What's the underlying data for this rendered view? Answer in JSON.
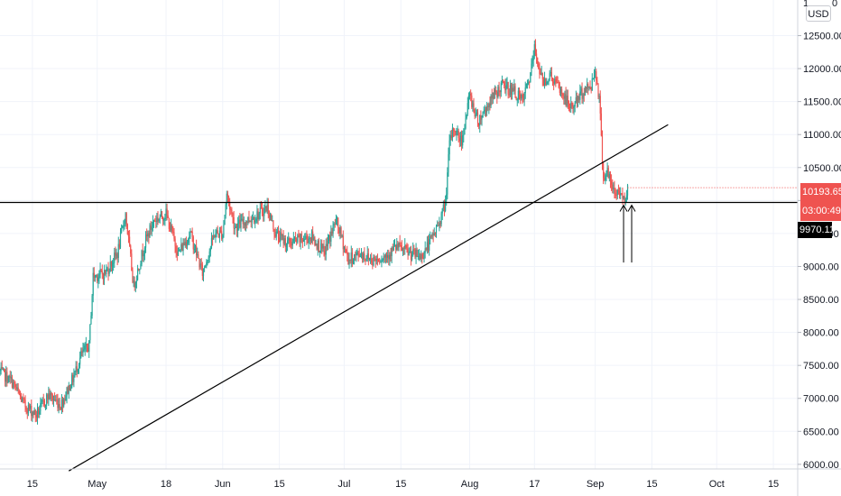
{
  "price_axis": {
    "currency_button": "USD",
    "partial_top_label": "1",
    "partial_top_suffix": "0"
  },
  "price_tags": {
    "last_price": "10193.65",
    "countdown": "03:00:49",
    "level": "9970.11"
  },
  "colors": {
    "up": "#26a69a",
    "down": "#ef5350",
    "line": "#000000",
    "grid": "#f0f3fa"
  },
  "chart_data": {
    "type": "candlestick",
    "title": "",
    "xlabel": "",
    "ylabel": "",
    "y_ticks": [
      6000,
      6500,
      7000,
      7500,
      8000,
      8500,
      9000,
      9500,
      10000,
      10500,
      11000,
      11500,
      12000,
      12500
    ],
    "y_tick_labels": [
      "6000.00",
      "6500.00",
      "7000.00",
      "7500.00",
      "8000.00",
      "8500.00",
      "9000.00",
      "9500.00",
      "10000.00",
      "10500.00",
      "11000.00",
      "11500.00",
      "12000.00",
      "12500.00"
    ],
    "ylim": [
      5930,
      13040
    ],
    "x_tick_labels": [
      "15",
      "May",
      "18",
      "Jun",
      "15",
      "Jul",
      "15",
      "Aug",
      "17",
      "Sep",
      "15",
      "Oct",
      "15"
    ],
    "x_tick_dates": [
      "2020-04-15",
      "2020-05-01",
      "2020-05-18",
      "2020-06-01",
      "2020-06-15",
      "2020-07-01",
      "2020-07-15",
      "2020-08-01",
      "2020-08-17",
      "2020-09-01",
      "2020-09-15",
      "2020-10-01",
      "2020-10-15"
    ],
    "xlim": [
      "2020-04-07",
      "2020-10-21"
    ],
    "price_path": [
      [
        "2020-04-07",
        7400
      ],
      [
        "2020-04-10",
        7250
      ],
      [
        "2020-04-13",
        6900
      ],
      [
        "2020-04-16",
        6750
      ],
      [
        "2020-04-19",
        7050
      ],
      [
        "2020-04-22",
        6900
      ],
      [
        "2020-04-25",
        7300
      ],
      [
        "2020-04-27",
        7650
      ],
      [
        "2020-04-29",
        7800
      ],
      [
        "2020-04-30",
        8850
      ],
      [
        "2020-05-03",
        8900
      ],
      [
        "2020-05-06",
        9200
      ],
      [
        "2020-05-08",
        9800
      ],
      [
        "2020-05-10",
        8700
      ],
      [
        "2020-05-13",
        9400
      ],
      [
        "2020-05-15",
        9700
      ],
      [
        "2020-05-18",
        9800
      ],
      [
        "2020-05-21",
        9200
      ],
      [
        "2020-05-24",
        9500
      ],
      [
        "2020-05-27",
        8900
      ],
      [
        "2020-05-30",
        9500
      ],
      [
        "2020-06-01",
        9500
      ],
      [
        "2020-06-02",
        10100
      ],
      [
        "2020-06-04",
        9600
      ],
      [
        "2020-06-07",
        9700
      ],
      [
        "2020-06-10",
        9800
      ],
      [
        "2020-06-12",
        9900
      ],
      [
        "2020-06-14",
        9500
      ],
      [
        "2020-06-17",
        9350
      ],
      [
        "2020-06-20",
        9400
      ],
      [
        "2020-06-23",
        9450
      ],
      [
        "2020-06-26",
        9200
      ],
      [
        "2020-06-29",
        9700
      ],
      [
        "2020-07-02",
        9100
      ],
      [
        "2020-07-05",
        9200
      ],
      [
        "2020-07-08",
        9100
      ],
      [
        "2020-07-11",
        9150
      ],
      [
        "2020-07-14",
        9300
      ],
      [
        "2020-07-17",
        9200
      ],
      [
        "2020-07-20",
        9150
      ],
      [
        "2020-07-22",
        9350
      ],
      [
        "2020-07-24",
        9600
      ],
      [
        "2020-07-26",
        9950
      ],
      [
        "2020-07-27",
        10850
      ],
      [
        "2020-07-28",
        11100
      ],
      [
        "2020-07-30",
        10900
      ],
      [
        "2020-08-01",
        11600
      ],
      [
        "2020-08-03",
        11200
      ],
      [
        "2020-08-06",
        11500
      ],
      [
        "2020-08-09",
        11750
      ],
      [
        "2020-08-12",
        11650
      ],
      [
        "2020-08-14",
        11500
      ],
      [
        "2020-08-16",
        11900
      ],
      [
        "2020-08-17",
        12300
      ],
      [
        "2020-08-19",
        11800
      ],
      [
        "2020-08-21",
        11900
      ],
      [
        "2020-08-23",
        11700
      ],
      [
        "2020-08-26",
        11400
      ],
      [
        "2020-08-29",
        11650
      ],
      [
        "2020-08-31",
        11750
      ],
      [
        "2020-09-01",
        12000
      ],
      [
        "2020-09-02",
        11550
      ],
      [
        "2020-09-03",
        10350
      ],
      [
        "2020-09-04",
        10450
      ],
      [
        "2020-09-05",
        10200
      ],
      [
        "2020-09-06",
        10100
      ],
      [
        "2020-09-07",
        10150
      ],
      [
        "2020-09-08",
        10000
      ],
      [
        "2020-09-09",
        10200
      ]
    ],
    "annotations": {
      "horizontal_level": 9970.11,
      "trendline": {
        "from": [
          "2020-04-24",
          5900
        ],
        "to": [
          "2020-09-19",
          11150
        ]
      },
      "arrows_at": [
        "2020-09-08",
        "2020-09-10"
      ],
      "last_price": 10193.65
    }
  }
}
